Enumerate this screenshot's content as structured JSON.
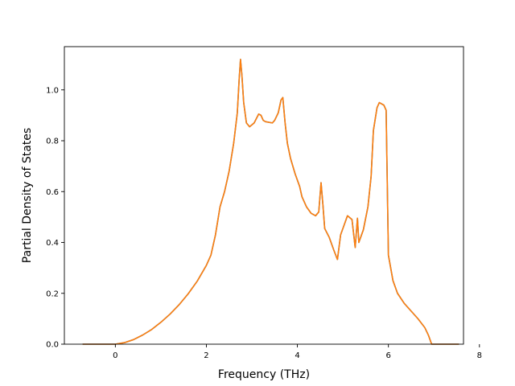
{
  "chart_data": {
    "type": "line",
    "title": "",
    "xlabel": "Frequency (THz)",
    "ylabel": "Partial Density of States",
    "xlim": [
      -1.12,
      7.65
    ],
    "ylim": [
      0.0,
      1.17
    ],
    "xticks": [
      0,
      2,
      4,
      6,
      8
    ],
    "yticks": [
      0.0,
      0.2,
      0.4,
      0.6,
      0.8,
      1.0
    ],
    "xtick_labels": [
      "0",
      "2",
      "4",
      "6",
      "8"
    ],
    "ytick_labels": [
      "0.0",
      "0.2",
      "0.4",
      "0.6",
      "0.8",
      "1.0"
    ],
    "grid": false,
    "legend": "none",
    "series": [
      {
        "color": "#1f77b4",
        "points": [
          [
            -0.72,
            0.0
          ],
          [
            -0.4,
            0.0
          ],
          [
            0.0,
            0.0
          ],
          [
            0.2,
            0.006
          ],
          [
            0.4,
            0.018
          ],
          [
            0.6,
            0.036
          ],
          [
            0.8,
            0.058
          ],
          [
            1.0,
            0.086
          ],
          [
            1.2,
            0.118
          ],
          [
            1.4,
            0.155
          ],
          [
            1.6,
            0.198
          ],
          [
            1.8,
            0.248
          ],
          [
            2.0,
            0.31
          ],
          [
            2.1,
            0.35
          ],
          [
            2.2,
            0.43
          ],
          [
            2.3,
            0.54
          ],
          [
            2.4,
            0.6
          ],
          [
            2.5,
            0.68
          ],
          [
            2.6,
            0.79
          ],
          [
            2.68,
            0.91
          ],
          [
            2.72,
            1.04
          ],
          [
            2.75,
            1.12
          ],
          [
            2.78,
            1.06
          ],
          [
            2.82,
            0.95
          ],
          [
            2.88,
            0.87
          ],
          [
            2.95,
            0.855
          ],
          [
            3.05,
            0.87
          ],
          [
            3.15,
            0.905
          ],
          [
            3.2,
            0.9
          ],
          [
            3.25,
            0.88
          ],
          [
            3.3,
            0.875
          ],
          [
            3.45,
            0.87
          ],
          [
            3.5,
            0.88
          ],
          [
            3.58,
            0.91
          ],
          [
            3.64,
            0.96
          ],
          [
            3.68,
            0.97
          ],
          [
            3.73,
            0.87
          ],
          [
            3.78,
            0.79
          ],
          [
            3.85,
            0.73
          ],
          [
            3.95,
            0.67
          ],
          [
            4.05,
            0.62
          ],
          [
            4.1,
            0.58
          ],
          [
            4.2,
            0.54
          ],
          [
            4.3,
            0.515
          ],
          [
            4.4,
            0.505
          ],
          [
            4.47,
            0.52
          ],
          [
            4.52,
            0.635
          ],
          [
            4.56,
            0.55
          ],
          [
            4.6,
            0.455
          ],
          [
            4.7,
            0.42
          ],
          [
            4.8,
            0.37
          ],
          [
            4.88,
            0.333
          ],
          [
            4.95,
            0.43
          ],
          [
            5.05,
            0.48
          ],
          [
            5.1,
            0.505
          ],
          [
            5.2,
            0.49
          ],
          [
            5.27,
            0.38
          ],
          [
            5.32,
            0.495
          ],
          [
            5.35,
            0.4
          ],
          [
            5.45,
            0.45
          ],
          [
            5.55,
            0.54
          ],
          [
            5.62,
            0.66
          ],
          [
            5.67,
            0.84
          ],
          [
            5.75,
            0.93
          ],
          [
            5.8,
            0.95
          ],
          [
            5.9,
            0.94
          ],
          [
            5.95,
            0.92
          ],
          [
            6.0,
            0.35
          ],
          [
            6.1,
            0.25
          ],
          [
            6.2,
            0.2
          ],
          [
            6.35,
            0.16
          ],
          [
            6.5,
            0.13
          ],
          [
            6.65,
            0.1
          ],
          [
            6.8,
            0.065
          ],
          [
            6.88,
            0.035
          ],
          [
            6.95,
            0.0
          ],
          [
            7.2,
            0.0
          ],
          [
            7.55,
            0.0
          ]
        ]
      },
      {
        "color": "#ff7f0e",
        "points": [
          [
            -0.72,
            0.0
          ],
          [
            -0.4,
            0.0
          ],
          [
            0.0,
            0.0
          ],
          [
            0.2,
            0.006
          ],
          [
            0.4,
            0.018
          ],
          [
            0.6,
            0.036
          ],
          [
            0.8,
            0.058
          ],
          [
            1.0,
            0.086
          ],
          [
            1.2,
            0.118
          ],
          [
            1.4,
            0.155
          ],
          [
            1.6,
            0.198
          ],
          [
            1.8,
            0.248
          ],
          [
            2.0,
            0.31
          ],
          [
            2.1,
            0.35
          ],
          [
            2.2,
            0.43
          ],
          [
            2.3,
            0.54
          ],
          [
            2.4,
            0.6
          ],
          [
            2.5,
            0.68
          ],
          [
            2.6,
            0.79
          ],
          [
            2.68,
            0.91
          ],
          [
            2.72,
            1.04
          ],
          [
            2.75,
            1.12
          ],
          [
            2.78,
            1.06
          ],
          [
            2.82,
            0.95
          ],
          [
            2.88,
            0.87
          ],
          [
            2.95,
            0.855
          ],
          [
            3.05,
            0.87
          ],
          [
            3.15,
            0.905
          ],
          [
            3.2,
            0.9
          ],
          [
            3.25,
            0.88
          ],
          [
            3.3,
            0.875
          ],
          [
            3.45,
            0.87
          ],
          [
            3.5,
            0.88
          ],
          [
            3.58,
            0.91
          ],
          [
            3.64,
            0.96
          ],
          [
            3.68,
            0.97
          ],
          [
            3.73,
            0.87
          ],
          [
            3.78,
            0.79
          ],
          [
            3.85,
            0.73
          ],
          [
            3.95,
            0.67
          ],
          [
            4.05,
            0.62
          ],
          [
            4.1,
            0.58
          ],
          [
            4.2,
            0.54
          ],
          [
            4.3,
            0.515
          ],
          [
            4.4,
            0.505
          ],
          [
            4.47,
            0.52
          ],
          [
            4.52,
            0.635
          ],
          [
            4.56,
            0.55
          ],
          [
            4.6,
            0.455
          ],
          [
            4.7,
            0.42
          ],
          [
            4.8,
            0.37
          ],
          [
            4.88,
            0.333
          ],
          [
            4.95,
            0.43
          ],
          [
            5.05,
            0.48
          ],
          [
            5.1,
            0.505
          ],
          [
            5.2,
            0.49
          ],
          [
            5.27,
            0.38
          ],
          [
            5.32,
            0.495
          ],
          [
            5.35,
            0.4
          ],
          [
            5.45,
            0.45
          ],
          [
            5.55,
            0.54
          ],
          [
            5.62,
            0.66
          ],
          [
            5.67,
            0.84
          ],
          [
            5.75,
            0.93
          ],
          [
            5.8,
            0.95
          ],
          [
            5.9,
            0.94
          ],
          [
            5.95,
            0.92
          ],
          [
            6.0,
            0.35
          ],
          [
            6.1,
            0.25
          ],
          [
            6.2,
            0.2
          ],
          [
            6.35,
            0.16
          ],
          [
            6.5,
            0.13
          ],
          [
            6.65,
            0.1
          ],
          [
            6.8,
            0.065
          ],
          [
            6.88,
            0.035
          ],
          [
            6.95,
            0.0
          ],
          [
            7.2,
            0.0
          ],
          [
            7.55,
            0.0
          ]
        ]
      }
    ]
  }
}
